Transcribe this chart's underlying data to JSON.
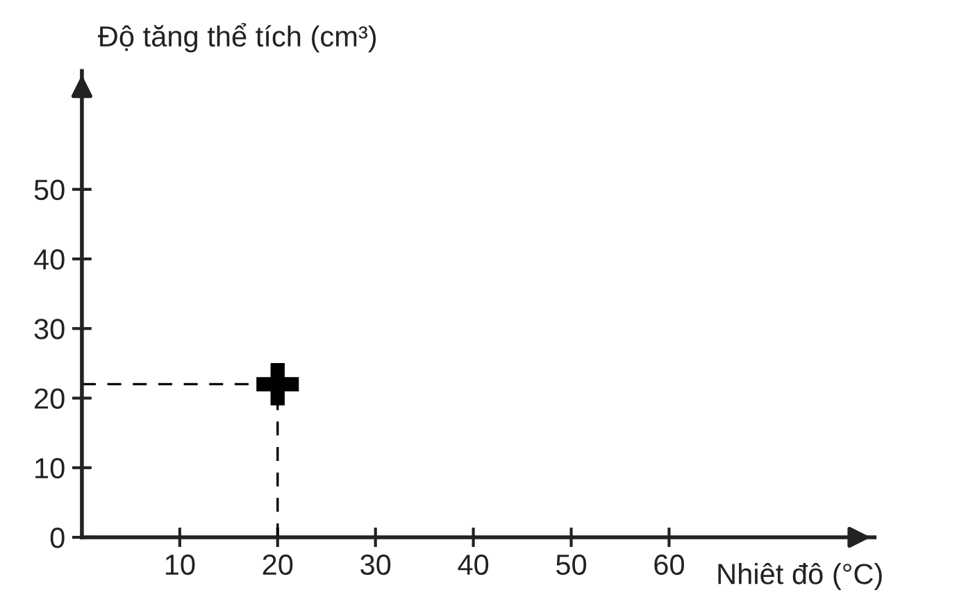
{
  "chart_data": {
    "type": "scatter",
    "xlabel": "Nhiêt đô (°C)",
    "ylabel": "Độ tăng thể tích (cm³)",
    "x": [
      20
    ],
    "values": [
      22
    ],
    "color": "#000000",
    "marker": "cross",
    "xlim": [
      0,
      81
    ],
    "ylim": [
      0,
      67
    ],
    "xticks": [
      10,
      20,
      30,
      40,
      50,
      60
    ],
    "yticks": [
      0,
      10,
      20,
      30,
      40,
      50
    ],
    "ref_lines": [
      {
        "axis": "y",
        "value": 22,
        "label": null,
        "line_style": "dashed",
        "color": "#000000"
      },
      {
        "axis": "x",
        "value": 20,
        "label": null,
        "line_style": "dashed",
        "color": "#000000"
      }
    ],
    "grid": false
  }
}
